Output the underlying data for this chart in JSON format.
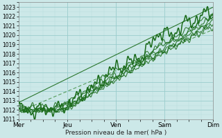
{
  "xlabel": "Pression niveau de la mer( hPa )",
  "ylim": [
    1011,
    1023.5
  ],
  "xlim": [
    0,
    96
  ],
  "yticks": [
    1011,
    1012,
    1013,
    1014,
    1015,
    1016,
    1017,
    1018,
    1019,
    1020,
    1021,
    1022,
    1023
  ],
  "xtick_positions": [
    0,
    24,
    48,
    72,
    96
  ],
  "xtick_labels": [
    "Mer",
    "Jeu",
    "Ven",
    "Sam",
    "Dim"
  ],
  "bg_color": "#cce8e8",
  "grid_color_major": "#99cccc",
  "grid_color_minor": "#b8dede",
  "line_color": "#1a6b1a",
  "line_color_light": "#3a8b3a",
  "figsize": [
    3.2,
    2.0
  ],
  "dpi": 100
}
